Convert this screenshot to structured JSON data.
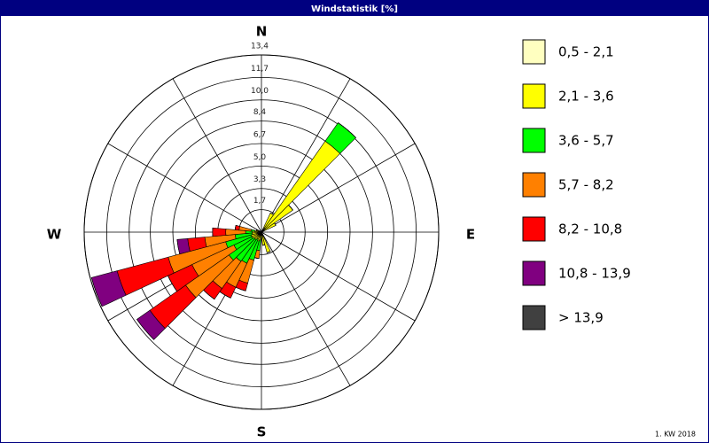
{
  "chart_data": {
    "type": "windrose",
    "title": "Windstatistik [%]",
    "footer": "1. KW 2018",
    "compass": {
      "N": "N",
      "E": "E",
      "S": "S",
      "W": "W"
    },
    "x": [
      0,
      10,
      20,
      30,
      40,
      50,
      60,
      70,
      80,
      90,
      100,
      110,
      120,
      130,
      140,
      150,
      160,
      170,
      180,
      190,
      200,
      210,
      220,
      230,
      240,
      250,
      260,
      270,
      280,
      290,
      300,
      310,
      320,
      330,
      340,
      350
    ],
    "ylim": [
      0,
      13.4
    ],
    "yticks": [
      {
        "value": 1.7,
        "label": "1,7"
      },
      {
        "value": 3.3,
        "label": "3,3"
      },
      {
        "value": 5.0,
        "label": "5,0"
      },
      {
        "value": 6.7,
        "label": "6,7"
      },
      {
        "value": 8.4,
        "label": "8,4"
      },
      {
        "value": 10.0,
        "label": "10,0"
      },
      {
        "value": 11.7,
        "label": "11,7"
      },
      {
        "value": 13.4,
        "label": "13,4"
      }
    ],
    "grid": true,
    "series": [
      {
        "name": "0,5 - 2,1",
        "color": "#ffffc0",
        "values": [
          0,
          0,
          0,
          0.3,
          0.4,
          0.3,
          0.2,
          0,
          0,
          0,
          0,
          0,
          0,
          0,
          0,
          0,
          0.2,
          0.2,
          0,
          0.2,
          0.2,
          0.2,
          0.2,
          0.3,
          0.3,
          0.3,
          0.3,
          0.3,
          0.2,
          0.2,
          0.1,
          0,
          0,
          0,
          0,
          0
        ]
      },
      {
        "name": "2,1 - 3,6",
        "color": "#ffff00",
        "values": [
          0,
          0,
          0,
          1.3,
          8.0,
          2.6,
          1.0,
          0,
          0,
          0,
          0,
          0,
          0,
          0,
          0,
          0,
          1.4,
          0.8,
          0,
          0.4,
          0.5,
          0.4,
          0.5,
          0.4,
          0.5,
          0.5,
          0.4,
          0.4,
          0.3,
          0.2,
          0,
          0,
          0,
          0,
          0,
          0
        ]
      },
      {
        "name": "3,6 - 5,7",
        "color": "#00ff00",
        "values": [
          0,
          0,
          0,
          0,
          1.7,
          0,
          0,
          0,
          0,
          0,
          0,
          0,
          0,
          0,
          0,
          0,
          0,
          0,
          0,
          0.8,
          1.5,
          2.0,
          2.0,
          2.3,
          1.5,
          2.0,
          1.3,
          0.5,
          0.3,
          0,
          0,
          0,
          0,
          0,
          0,
          0
        ]
      },
      {
        "name": "5,7 - 8,2",
        "color": "#ff8000",
        "values": [
          0,
          0,
          0,
          0,
          0,
          0,
          0,
          0,
          0,
          0,
          0,
          0,
          0,
          0,
          0,
          0,
          0,
          0,
          0,
          0.6,
          1.8,
          2.0,
          2.5,
          4.0,
          3.5,
          4.5,
          2.3,
          1.5,
          0.9,
          0,
          0,
          0,
          0,
          0,
          0,
          0
        ]
      },
      {
        "name": "8,2 - 10,8",
        "color": "#ff0000",
        "values": [
          0,
          0,
          0,
          0,
          0,
          0,
          0,
          0,
          0,
          0,
          0,
          0,
          0,
          0,
          0,
          0,
          0,
          0,
          0,
          0,
          0.6,
          0.9,
          1.0,
          3.3,
          2.0,
          4.0,
          1.3,
          1.0,
          0.3,
          0,
          0,
          0,
          0,
          0,
          0,
          0
        ]
      },
      {
        "name": "10,8 - 13,9",
        "color": "#800080",
        "values": [
          0,
          0,
          0,
          0,
          0,
          0,
          0,
          0,
          0,
          0,
          0,
          0,
          0,
          0,
          0,
          0,
          0,
          0,
          0,
          0,
          0,
          0,
          0,
          1.2,
          0,
          2.0,
          0.8,
          0,
          0,
          0,
          0,
          0,
          0,
          0,
          0,
          0
        ]
      },
      {
        "name": " > 13,9",
        "color": "#404040",
        "values": [
          0,
          0,
          0,
          0,
          0,
          0,
          0,
          0,
          0,
          0,
          0,
          0,
          0,
          0,
          0,
          0,
          0,
          0,
          0,
          0,
          0,
          0,
          0,
          0,
          0,
          0,
          0,
          0,
          0,
          0,
          0,
          0,
          0,
          0,
          0,
          0
        ]
      }
    ]
  }
}
